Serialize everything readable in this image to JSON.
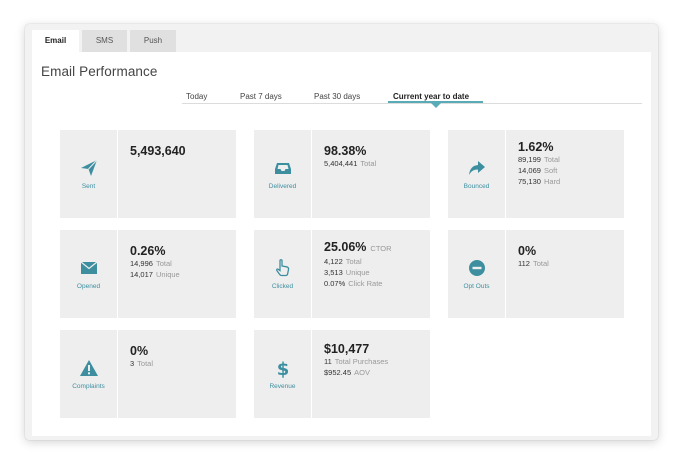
{
  "channel_tabs": [
    {
      "label": "Email",
      "active": true
    },
    {
      "label": "SMS",
      "active": false
    },
    {
      "label": "Push",
      "active": false
    }
  ],
  "section_title": "Email Performance",
  "periods": [
    {
      "label": "Today",
      "active": false
    },
    {
      "label": "Past 7 days",
      "active": false
    },
    {
      "label": "Past 30 days",
      "active": false
    },
    {
      "label": "Current year to date",
      "active": true
    }
  ],
  "colors": {
    "accent": "#5aabb8",
    "icon": "#3d8fa0",
    "card_bg": "#eeeeee"
  },
  "cards": {
    "sent": {
      "icon": "paper-plane-icon",
      "label": "Sent",
      "value": "5,493,640"
    },
    "delivered": {
      "icon": "inbox-icon",
      "label": "Delivered",
      "value": "98.38%",
      "rows": [
        {
          "value": "5,404,441",
          "label": "Total"
        }
      ]
    },
    "bounced": {
      "icon": "share-arrow-icon",
      "label": "Bounced",
      "value": "1.62%",
      "rows": [
        {
          "value": "89,199",
          "label": "Total"
        },
        {
          "value": "14,069",
          "label": "Soft"
        },
        {
          "value": "75,130",
          "label": "Hard"
        }
      ]
    },
    "opened": {
      "icon": "envelope-icon",
      "label": "Opened",
      "value": "0.26%",
      "rows": [
        {
          "value": "14,996",
          "label": "Total"
        },
        {
          "value": "14,017",
          "label": "Unique"
        }
      ]
    },
    "clicked": {
      "icon": "pointer-hand-icon",
      "label": "Clicked",
      "value": "25.06%",
      "value_suffix": "CTOR",
      "rows": [
        {
          "value": "4,122",
          "label": "Total"
        },
        {
          "value": "3,513",
          "label": "Unique"
        },
        {
          "value": "0.07%",
          "label": "Click Rate"
        }
      ]
    },
    "optouts": {
      "icon": "minus-circle-icon",
      "label": "Opt Outs",
      "value": "0%",
      "rows": [
        {
          "value": "112",
          "label": "Total"
        }
      ]
    },
    "complaints": {
      "icon": "warning-triangle-icon",
      "label": "Complaints",
      "value": "0%",
      "rows": [
        {
          "value": "3",
          "label": "Total"
        }
      ]
    },
    "revenue": {
      "icon": "dollar-icon",
      "label": "Revenue",
      "value": "$10,477",
      "rows": [
        {
          "value": "11",
          "label": "Total Purchases"
        },
        {
          "value": "$952.45",
          "label": "AOV"
        }
      ]
    }
  }
}
